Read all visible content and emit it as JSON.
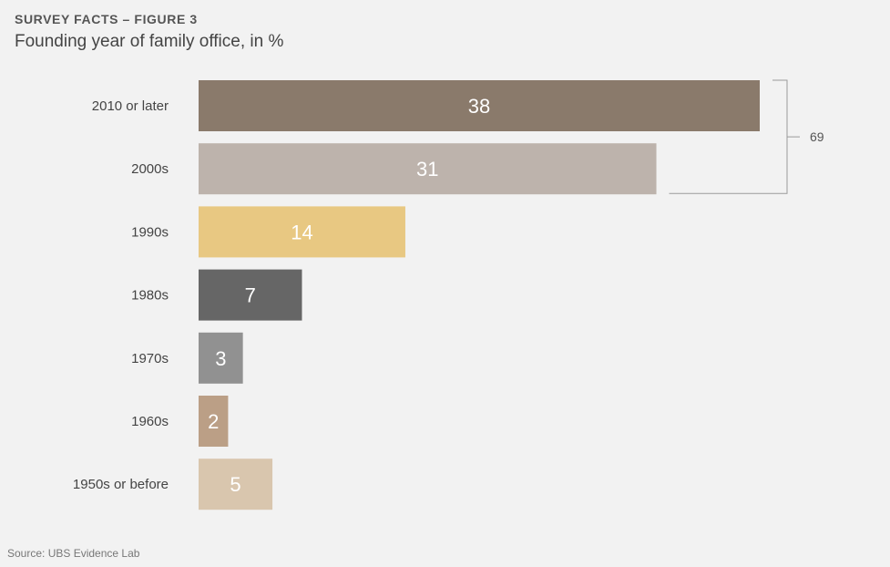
{
  "header": {
    "kicker": "SURVEY FACTS – FIGURE 3",
    "subtitle": "Founding year of family office, in %"
  },
  "footer": {
    "source": "Source: UBS Evidence Lab"
  },
  "chart_data": {
    "type": "bar",
    "orientation": "horizontal",
    "title": "Founding year of family office, in %",
    "xlabel": "",
    "ylabel": "",
    "xlim": [
      0,
      38
    ],
    "grid": false,
    "categories": [
      "2010 or later",
      "2000s",
      "1990s",
      "1980s",
      "1970s",
      "1960s",
      "1950s or before"
    ],
    "values": [
      38,
      31,
      14,
      7,
      3,
      2,
      5
    ],
    "colors": [
      "#8a7a6b",
      "#bdb3ac",
      "#e8c882",
      "#666666",
      "#919191",
      "#bb9f86",
      "#d9c6ae"
    ],
    "value_labels_inside": true,
    "annotations": [
      {
        "type": "bracket",
        "categories": [
          "2010 or later",
          "2000s"
        ],
        "label": "69"
      }
    ]
  }
}
